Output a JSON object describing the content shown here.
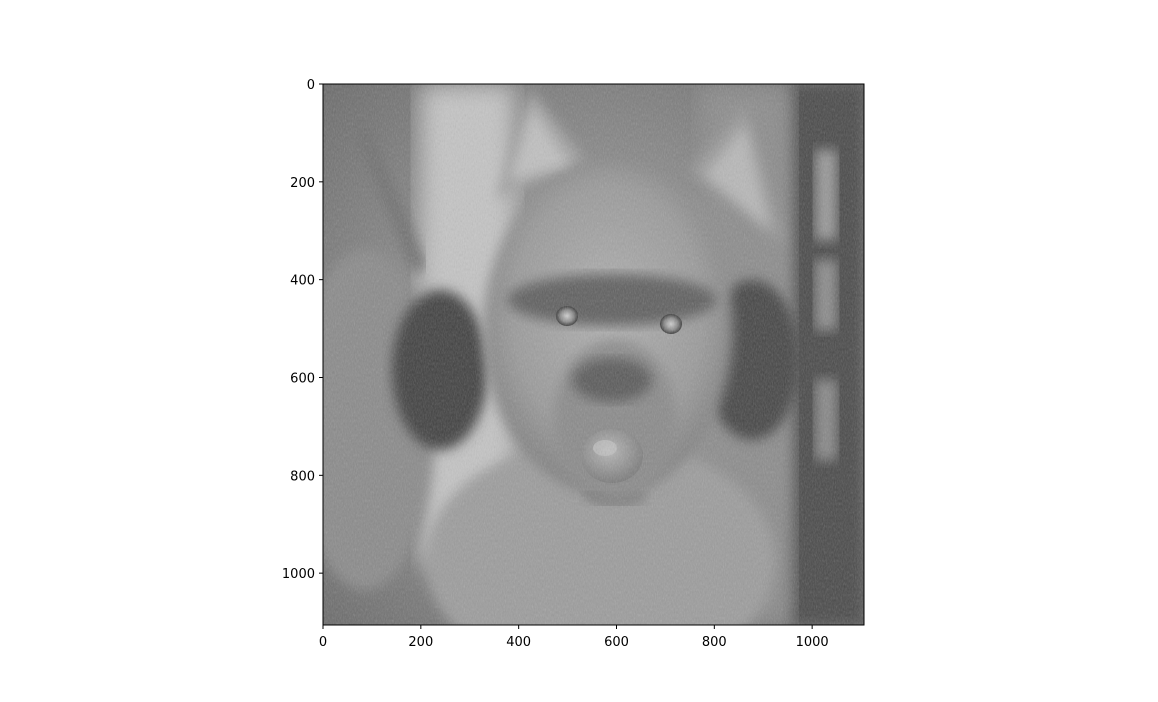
{
  "image": {
    "description_icon": "grayscale-photo-icon",
    "colors": {
      "background": "#ffffff",
      "axis": "#000000"
    }
  },
  "chart_data": {
    "type": "heatmap",
    "title": "",
    "xlabel": "",
    "ylabel": "",
    "colormap": "gray",
    "xlim": [
      0,
      1106
    ],
    "ylim": [
      1106,
      0
    ],
    "x_ticks": [
      "0",
      "200",
      "400",
      "600",
      "800",
      "1000"
    ],
    "y_ticks": [
      "0",
      "200",
      "400",
      "600",
      "800",
      "1000"
    ],
    "x_tick_values": [
      0,
      200,
      400,
      600,
      800,
      1000
    ],
    "y_tick_values": [
      0,
      200,
      400,
      600,
      800,
      1000
    ],
    "grid": false
  }
}
